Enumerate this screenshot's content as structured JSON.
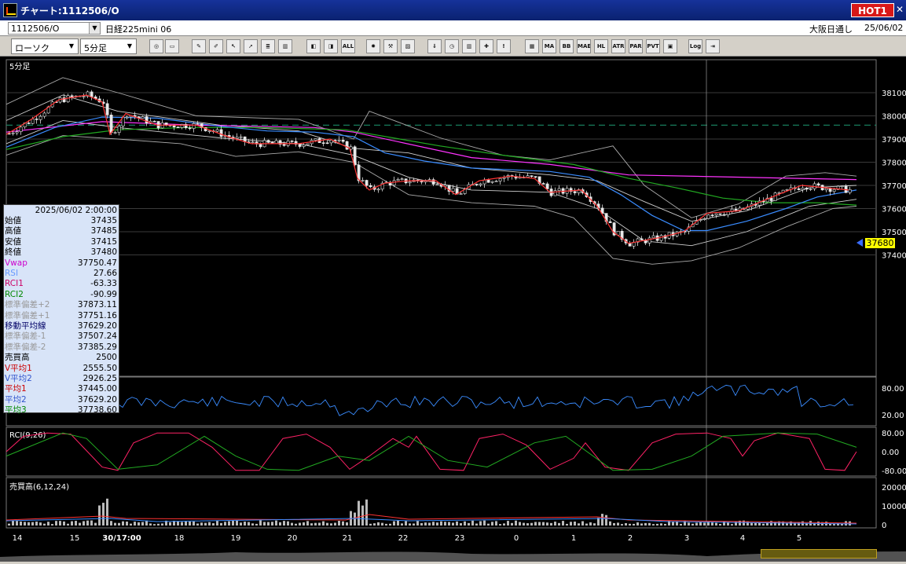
{
  "window": {
    "title": "チャート:1112506/O",
    "hot_label": "HOT1",
    "close_label": "✕"
  },
  "infobar": {
    "symbol": "1112506/O",
    "contract": "日経225mini 06",
    "session": "大阪日通し",
    "date": "25/06/02"
  },
  "toolbar": {
    "chart_type": "ローソク",
    "interval": "5分足",
    "buttons": [
      "search",
      "window",
      "pen",
      "pencil",
      "cursor",
      "arrow",
      "memo",
      "trash",
      "buy",
      "sell",
      "ALL",
      "settings",
      "wrench",
      "palette",
      "arrow-down",
      "clock",
      "bars",
      "cross",
      "disabled",
      "ichimoku",
      "MA",
      "BB",
      "MAE",
      "HL",
      "ATR",
      "PAR",
      "PVT",
      "box",
      "Log",
      "export"
    ]
  },
  "chart": {
    "panel_label": "5分足",
    "price_ticks": [
      "38100",
      "38000",
      "37900",
      "37800",
      "37700",
      "37600",
      "37500",
      "37400"
    ],
    "current_price": "37680",
    "rsi_panel_ticks": [
      "80.00",
      "20.00"
    ],
    "rci_label": "RCI(9,26)",
    "rci_ticks": [
      "80.00",
      "0.00",
      "-80.00"
    ],
    "volume_label": "売買高(6,12,24)",
    "volume_ticks": [
      "20000",
      "10000",
      "0"
    ],
    "time_labels": [
      "14",
      "15",
      "30/17:00",
      "18",
      "19",
      "20",
      "21",
      "22",
      "23",
      "0",
      "1",
      "2",
      "3",
      "4",
      "5"
    ],
    "colors": {
      "ma_short": "#ff3333",
      "ma_mid": "#3a8cff",
      "ma_long": "#22aa22",
      "vwap": "#ff33ff",
      "bands": "#aaaaaa",
      "dash": "#1a8a66"
    }
  },
  "data_window": {
    "date": "2025/06/02 2:00:00",
    "rows": [
      {
        "label": "始値",
        "value": "37435",
        "color": "#000000"
      },
      {
        "label": "高値",
        "value": "37485",
        "color": "#000000"
      },
      {
        "label": "安値",
        "value": "37415",
        "color": "#000000"
      },
      {
        "label": "終値",
        "value": "37480",
        "color": "#000000"
      },
      {
        "label": "Vwap",
        "value": "37750.47",
        "color": "#cc00cc"
      },
      {
        "label": "RSI",
        "value": "27.66",
        "color": "#6699ff"
      },
      {
        "label": "RCI1",
        "value": "-63.33",
        "color": "#cc0066"
      },
      {
        "label": "RCI2",
        "value": "-90.99",
        "color": "#008800"
      },
      {
        "label": "標準偏差+2",
        "value": "37873.11",
        "color": "#999999"
      },
      {
        "label": "標準偏差+1",
        "value": "37751.16",
        "color": "#999999"
      },
      {
        "label": "移動平均線",
        "value": "37629.20",
        "color": "#000066"
      },
      {
        "label": "標準偏差-1",
        "value": "37507.24",
        "color": "#999999"
      },
      {
        "label": "標準偏差-2",
        "value": "37385.29",
        "color": "#999999"
      },
      {
        "label": "売買高",
        "value": "2500",
        "color": "#000000"
      },
      {
        "label": "V平均1",
        "value": "2555.50",
        "color": "#cc0000"
      },
      {
        "label": "V平均2",
        "value": "2926.25",
        "color": "#3355cc"
      },
      {
        "label": "平均1",
        "value": "37445.00",
        "color": "#cc0000"
      },
      {
        "label": "平均2",
        "value": "37629.20",
        "color": "#3355cc"
      },
      {
        "label": "平均3",
        "value": "37738.60",
        "color": "#008800"
      }
    ]
  }
}
